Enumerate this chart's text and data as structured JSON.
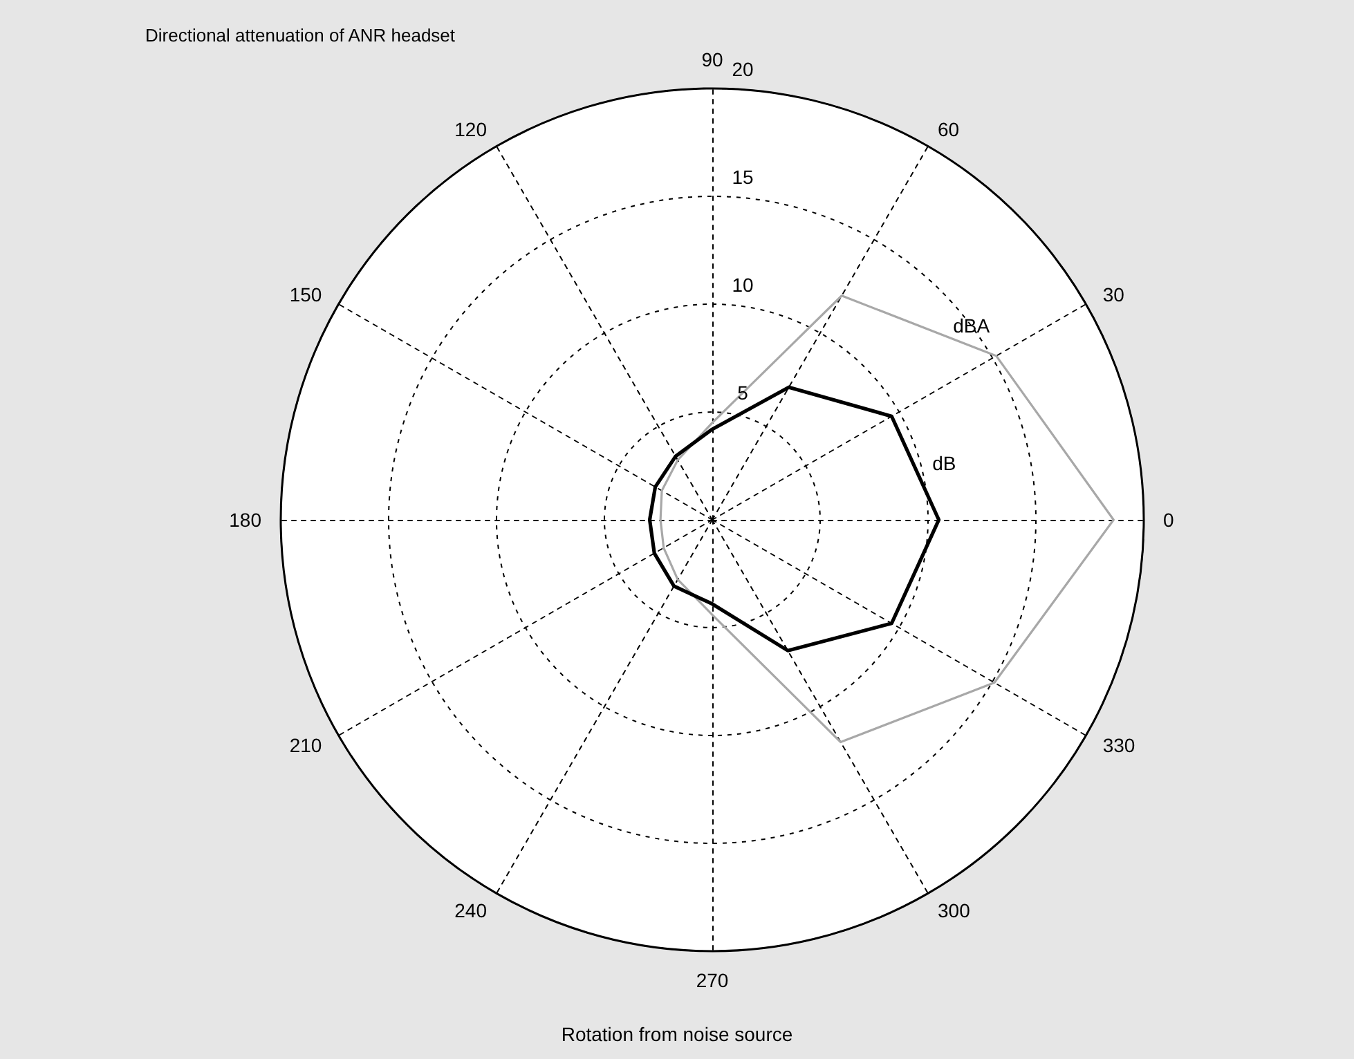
{
  "chart_data": {
    "type": "radar",
    "title": "Directional attenuation of ANR headset",
    "xlabel": "Rotation from noise source",
    "categories": [
      "90",
      "60",
      "30",
      "0",
      "330",
      "300",
      "270",
      "240",
      "210",
      "180",
      "150",
      "120"
    ],
    "series": [
      {
        "name": "dBA",
        "color": "#a8a8a8",
        "values": [
          4.5,
          12.0,
          15.2,
          18.6,
          15.1,
          11.9,
          4.4,
          3.2,
          2.6,
          2.4,
          2.7,
          3.2
        ]
      },
      {
        "name": "dB",
        "color": "#000000",
        "values": [
          4.2,
          7.1,
          9.6,
          10.5,
          9.6,
          7.0,
          3.9,
          3.55,
          3.1,
          2.9,
          3.05,
          3.4
        ]
      }
    ],
    "ylim": [
      0,
      20
    ],
    "yticks": [
      5,
      10,
      15,
      20
    ],
    "grid": true
  }
}
